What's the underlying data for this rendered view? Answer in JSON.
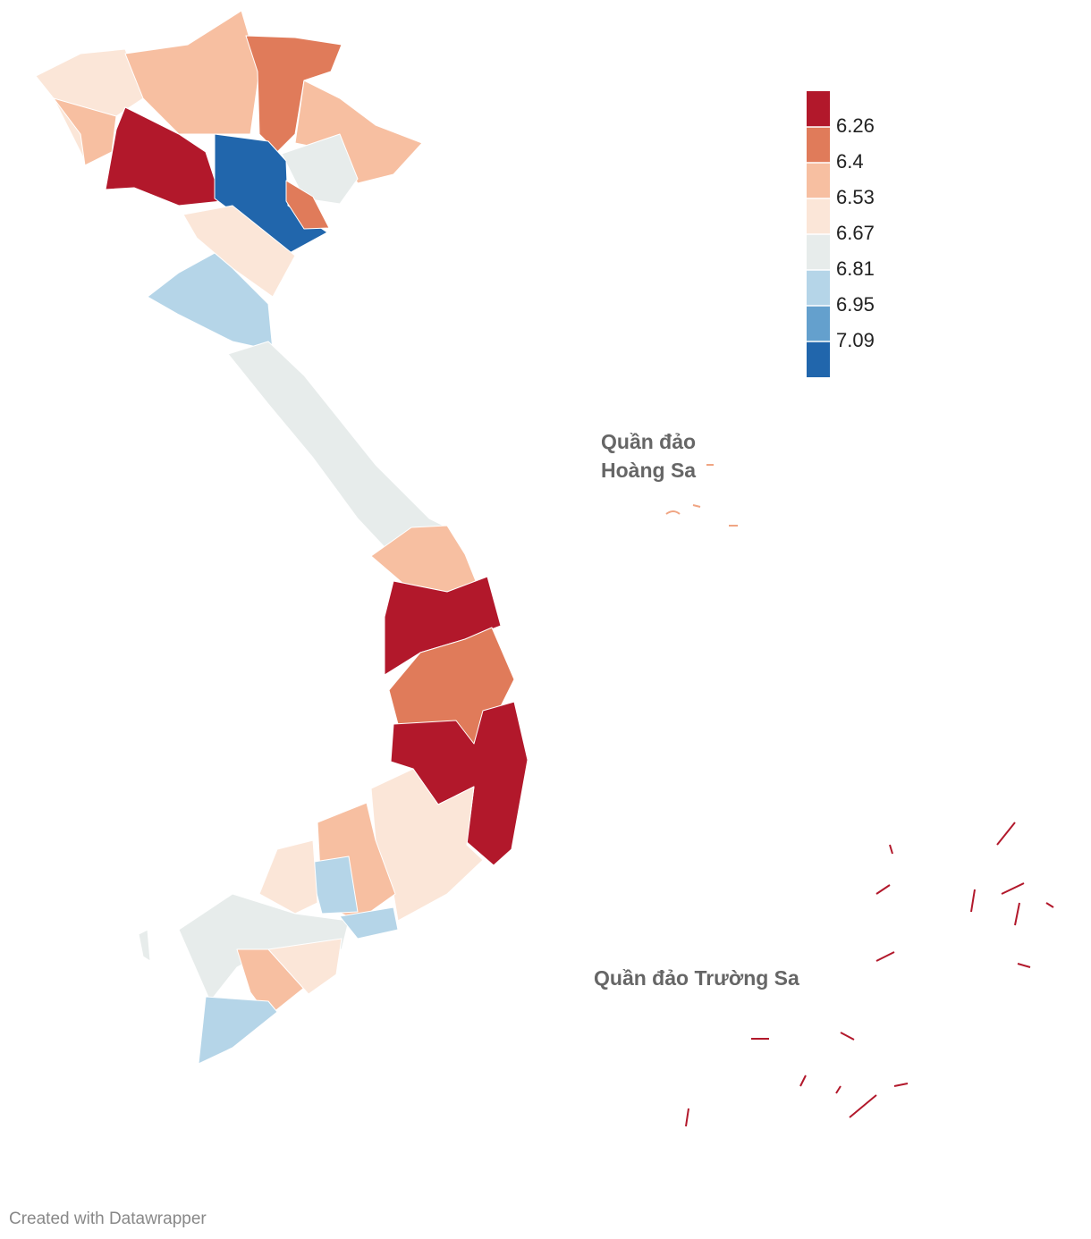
{
  "legend": {
    "colors": [
      "#b2182b",
      "#e07b5a",
      "#f7bfa1",
      "#fbe6d8",
      "#e7eceb",
      "#b5d5e8",
      "#64a0cd",
      "#2166ac"
    ],
    "ticks": [
      6.26,
      6.4,
      6.53,
      6.67,
      6.81,
      6.95,
      7.09
    ]
  },
  "labels": {
    "paracel": [
      "Quần đảo",
      "Hoàng Sa"
    ],
    "spratly": "Quần đảo Trường Sa"
  },
  "footer": "Created with Datawrapper"
}
